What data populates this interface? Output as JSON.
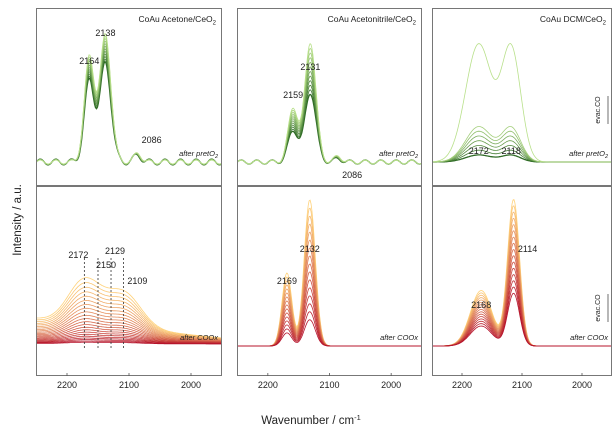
{
  "figure": {
    "ylabel": "Intensity / a.u.",
    "xlabel": "Wavenumber / cm",
    "xlabel_sup": "-1"
  },
  "chart_data": [
    {
      "type": "line",
      "title": "CoAu Acetone/CeO",
      "title_sub": "2",
      "row": 0,
      "col": 0,
      "palette": "green",
      "annotation": "after pretO",
      "annotation_sub": "2",
      "xlim": [
        2250,
        1950
      ],
      "xticks": [],
      "peaks": [
        {
          "label": "2164",
          "x": 2164
        },
        {
          "label": "2138",
          "x": 2138
        },
        {
          "label": "2086",
          "x": 2086
        }
      ],
      "bands": [
        {
          "x": 2164,
          "w": 8,
          "a": 0.82
        },
        {
          "x": 2138,
          "w": 9,
          "a": 1.0
        },
        {
          "x": 2086,
          "w": 6,
          "a": 0.07
        }
      ],
      "curves": 12,
      "min_scale": 0.82,
      "max_scale": 1.06
    },
    {
      "type": "line",
      "title": "CoAu Acetonitrile/CeO",
      "title_sub": "2",
      "row": 0,
      "col": 1,
      "palette": "green",
      "annotation": "after pretO",
      "annotation_sub": "2",
      "xlim": [
        2250,
        1950
      ],
      "xticks": [],
      "peaks": [
        {
          "label": "2159",
          "x": 2159
        },
        {
          "label": "2131",
          "x": 2131
        },
        {
          "label": "2086",
          "x": 2086
        }
      ],
      "bands": [
        {
          "x": 2159,
          "w": 8,
          "a": 0.45
        },
        {
          "x": 2131,
          "w": 9,
          "a": 1.0
        },
        {
          "x": 2086,
          "w": 6,
          "a": 0.05
        }
      ],
      "curves": 12,
      "min_scale": 0.58,
      "max_scale": 1.0
    },
    {
      "type": "line",
      "title": "CoAu DCM/CeO",
      "title_sub": "2",
      "row": 0,
      "col": 2,
      "palette": "green",
      "annotation": "after pretO",
      "annotation_sub": "2",
      "side_label": "evac.CO",
      "xlim": [
        2250,
        1950
      ],
      "xticks": [],
      "peaks": [
        {
          "label": "2172",
          "x": 2172
        },
        {
          "label": "2118",
          "x": 2118
        }
      ],
      "bands": [
        {
          "x": 2172,
          "w": 22,
          "a": 1.0
        },
        {
          "x": 2118,
          "w": 16,
          "a": 0.95
        }
      ],
      "curves": 8,
      "min_scale": 0.06,
      "max_scale": 0.34,
      "top_curve_scale": 1.0
    },
    {
      "type": "line",
      "title": "",
      "row": 1,
      "col": 0,
      "palette": "warm",
      "annotation": "after COOx",
      "annotation_sub": "",
      "xlim": [
        2250,
        1950
      ],
      "xticks": [
        2200,
        2100,
        2000
      ],
      "peaks": [
        {
          "label": "2172",
          "x": 2172
        },
        {
          "label": "2150",
          "x": 2150
        },
        {
          "label": "2129",
          "x": 2129
        },
        {
          "label": "2109",
          "x": 2109
        }
      ],
      "dashed_refs": [
        2172,
        2150,
        2129,
        2109
      ],
      "curves": 22,
      "min_scale": 0.0,
      "max_scale": 1.0
    },
    {
      "type": "line",
      "title": "",
      "row": 1,
      "col": 1,
      "palette": "warm",
      "annotation": "after COOx",
      "annotation_sub": "",
      "xlim": [
        2250,
        1950
      ],
      "xticks": [
        2200,
        2100,
        2000
      ],
      "peaks": [
        {
          "label": "2169",
          "x": 2169
        },
        {
          "label": "2132",
          "x": 2132
        }
      ],
      "bands": [
        {
          "x": 2169,
          "w": 8,
          "a": 0.5
        },
        {
          "x": 2132,
          "w": 9,
          "a": 1.0
        }
      ],
      "curves": 16,
      "min_scale": 0.18,
      "max_scale": 1.0
    },
    {
      "type": "line",
      "title": "",
      "row": 1,
      "col": 2,
      "palette": "warm",
      "annotation": "after COOx",
      "annotation_sub": "",
      "side_label": "evac.CO",
      "xlim": [
        2250,
        1950
      ],
      "xticks": [
        2200,
        2100,
        2000
      ],
      "peaks": [
        {
          "label": "2168",
          "x": 2168
        },
        {
          "label": "2114",
          "x": 2114
        }
      ],
      "bands": [
        {
          "x": 2168,
          "w": 18,
          "a": 0.38
        },
        {
          "x": 2114,
          "w": 10,
          "a": 1.0
        }
      ],
      "curves": 16,
      "min_scale": 0.36,
      "max_scale": 1.0
    }
  ],
  "colors": {
    "green_light": "#b8e08a",
    "green_dark": "#2f6b25",
    "warm_light": "#ffd27a",
    "warm_dark": "#b5122a"
  }
}
